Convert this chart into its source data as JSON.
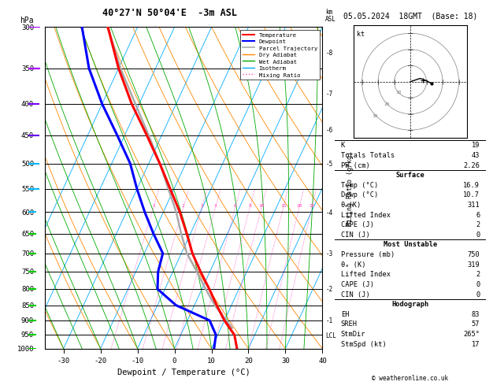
{
  "title_left": "40°27'N 50°04'E  -3m ASL",
  "title_right": "05.05.2024  18GMT  (Base: 18)",
  "xlabel": "Dewpoint / Temperature (°C)",
  "ylabel_left": "hPa",
  "pressure_levels": [
    300,
    350,
    400,
    450,
    500,
    550,
    600,
    650,
    700,
    750,
    800,
    850,
    900,
    950,
    1000
  ],
  "pressure_min": 300,
  "pressure_max": 1000,
  "temp_min": -35,
  "temp_max": 40,
  "temp_profile": {
    "pressure": [
      1000,
      950,
      900,
      850,
      800,
      750,
      700,
      650,
      600,
      550,
      500,
      450,
      400,
      350,
      300
    ],
    "temp": [
      16.9,
      14.5,
      10.0,
      6.0,
      2.0,
      -2.5,
      -7.0,
      -11.0,
      -15.5,
      -21.0,
      -27.0,
      -34.0,
      -42.0,
      -50.0,
      -58.0
    ],
    "color": "#ff0000",
    "lw": 2.2
  },
  "dewp_profile": {
    "pressure": [
      1000,
      950,
      900,
      850,
      800,
      750,
      700,
      650,
      600,
      550,
      500,
      450,
      400,
      350,
      300
    ],
    "temp": [
      10.7,
      9.5,
      6.0,
      -5.0,
      -12.0,
      -14.0,
      -15.0,
      -20.0,
      -25.0,
      -30.0,
      -35.0,
      -42.0,
      -50.0,
      -58.0,
      -65.0
    ],
    "color": "#0000ff",
    "lw": 2.2
  },
  "parcel_profile": {
    "pressure": [
      925,
      900,
      850,
      800,
      750,
      700,
      650,
      600,
      550,
      500,
      450,
      400,
      350,
      300
    ],
    "temp": [
      13.0,
      10.5,
      5.5,
      1.0,
      -3.5,
      -8.5,
      -12.5,
      -16.5,
      -21.5,
      -27.0,
      -33.5,
      -41.0,
      -49.5,
      -58.0
    ],
    "color": "#aaaaaa",
    "lw": 1.8
  },
  "isotherm_color": "#00aaff",
  "isotherm_lw": 0.6,
  "dry_adiabat_color": "#ff8800",
  "dry_adiabat_lw": 0.6,
  "wet_adiabat_color": "#00aa00",
  "wet_adiabat_lw": 0.6,
  "mixing_ratio_color": "#ff44bb",
  "mixing_ratio_lw": 0.6,
  "mixing_ratios": [
    1,
    2,
    3,
    4,
    6,
    8,
    10,
    15,
    20,
    25
  ],
  "km_ticks": [
    1,
    2,
    3,
    4,
    5,
    6,
    7,
    8
  ],
  "km_pressures": [
    900,
    800,
    700,
    600,
    500,
    440,
    385,
    330
  ],
  "lcl_pressure": 952,
  "skew_amount": 40.0,
  "right_panel": {
    "k_index": 19,
    "totals_totals": 43,
    "pw_cm": "2.26",
    "surface_temp": "16.9",
    "surface_dewp": "10.7",
    "theta_e_k": 311,
    "lifted_index": 6,
    "cape_j": 2,
    "cin_j": 0,
    "mu_pressure_mb": 750,
    "mu_theta_e_k": 319,
    "mu_lifted_index": 2,
    "mu_cape_j": 0,
    "mu_cin_j": 0,
    "hodo_eh": 83,
    "hodo_sreh": 57,
    "hodo_stmdir": "265°",
    "hodo_stmspd_kt": 17
  },
  "legend_items": [
    {
      "label": "Temperature",
      "color": "#ff0000",
      "lw": 1.5,
      "style": "solid"
    },
    {
      "label": "Dewpoint",
      "color": "#0000ff",
      "lw": 1.5,
      "style": "solid"
    },
    {
      "label": "Parcel Trajectory",
      "color": "#aaaaaa",
      "lw": 1.2,
      "style": "solid"
    },
    {
      "label": "Dry Adiabat",
      "color": "#ff8800",
      "lw": 1.0,
      "style": "solid"
    },
    {
      "label": "Wet Adiabat",
      "color": "#00aa00",
      "lw": 1.0,
      "style": "solid"
    },
    {
      "label": "Isotherm",
      "color": "#00aaff",
      "lw": 1.0,
      "style": "solid"
    },
    {
      "label": "Mixing Ratio",
      "color": "#ff44bb",
      "lw": 1.0,
      "style": "dotted"
    }
  ]
}
